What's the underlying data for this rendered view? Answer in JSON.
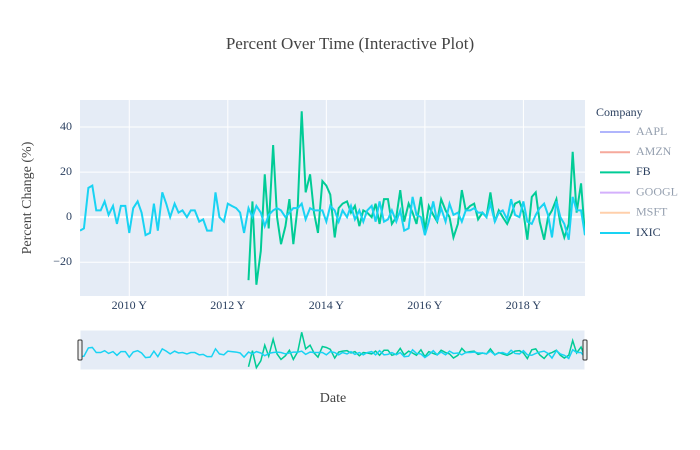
{
  "chart_data": {
    "type": "line",
    "title": "Percent Over Time (Interactive Plot)",
    "x_label": "Date",
    "y_label": "Percent Change (%)",
    "legend_title": "Company",
    "x": [
      2009,
      2009.08,
      2009.17,
      2009.25,
      2009.33,
      2009.42,
      2009.5,
      2009.58,
      2009.67,
      2009.75,
      2009.83,
      2009.92,
      2010,
      2010.08,
      2010.17,
      2010.25,
      2010.33,
      2010.42,
      2010.5,
      2010.58,
      2010.67,
      2010.75,
      2010.83,
      2010.92,
      2011,
      2011.08,
      2011.17,
      2011.25,
      2011.33,
      2011.42,
      2011.5,
      2011.58,
      2011.67,
      2011.75,
      2011.83,
      2011.92,
      2012,
      2012.08,
      2012.17,
      2012.25,
      2012.33,
      2012.42,
      2012.5,
      2012.58,
      2012.67,
      2012.75,
      2012.83,
      2012.92,
      2013,
      2013.08,
      2013.17,
      2013.25,
      2013.33,
      2013.42,
      2013.5,
      2013.58,
      2013.67,
      2013.75,
      2013.83,
      2013.92,
      2014,
      2014.08,
      2014.17,
      2014.25,
      2014.33,
      2014.42,
      2014.5,
      2014.58,
      2014.67,
      2014.75,
      2014.83,
      2014.92,
      2015,
      2015.08,
      2015.17,
      2015.25,
      2015.33,
      2015.42,
      2015.5,
      2015.58,
      2015.67,
      2015.75,
      2015.83,
      2015.92,
      2016,
      2016.08,
      2016.17,
      2016.25,
      2016.33,
      2016.42,
      2016.5,
      2016.58,
      2016.67,
      2016.75,
      2016.83,
      2016.92,
      2017,
      2017.08,
      2017.17,
      2017.25,
      2017.33,
      2017.42,
      2017.5,
      2017.58,
      2017.67,
      2017.75,
      2017.83,
      2017.92,
      2018,
      2018.08,
      2018.17,
      2018.25,
      2018.33,
      2018.42,
      2018.5,
      2018.58,
      2018.67,
      2018.75,
      2018.83,
      2018.92,
      2019,
      2019.08,
      2019.17,
      2019.25
    ],
    "series": [
      {
        "name": "AAPL",
        "color": "#636efa",
        "visible": "legendonly"
      },
      {
        "name": "AMZN",
        "color": "#EF553B",
        "visible": "legendonly"
      },
      {
        "name": "FB",
        "color": "#00cc96",
        "visible": true,
        "values": [
          null,
          null,
          null,
          null,
          null,
          null,
          null,
          null,
          null,
          null,
          null,
          null,
          null,
          null,
          null,
          null,
          null,
          null,
          null,
          null,
          null,
          null,
          null,
          null,
          null,
          null,
          null,
          null,
          null,
          null,
          null,
          null,
          null,
          null,
          null,
          null,
          null,
          null,
          null,
          null,
          null,
          -28,
          7,
          -30,
          -15,
          19,
          -5,
          32,
          0,
          -12,
          -4,
          8,
          -12,
          5,
          47,
          11,
          19,
          2,
          -7,
          16,
          14,
          10,
          -9,
          4,
          6,
          7,
          2,
          5,
          -4,
          3,
          2,
          0,
          6,
          -3,
          8,
          8,
          -3,
          0,
          12,
          -2,
          6,
          2,
          -3,
          9,
          -6,
          5,
          1,
          -2,
          8,
          3,
          0,
          -9,
          -3,
          12,
          3,
          5,
          6,
          -1,
          2,
          0,
          11,
          -2,
          3,
          0,
          -3,
          1,
          6,
          7,
          2,
          -10,
          9,
          11,
          -2,
          -10,
          0,
          3,
          8,
          -3,
          -9,
          -3,
          29,
          2,
          15,
          -8
        ]
      },
      {
        "name": "GOOGL",
        "color": "#ab63fa",
        "visible": "legendonly"
      },
      {
        "name": "MSFT",
        "color": "#FFA15A",
        "visible": "legendonly"
      },
      {
        "name": "IXIC",
        "color": "#19d3f3",
        "visible": true,
        "values": [
          -6,
          -5,
          13,
          14,
          3,
          3,
          7,
          1,
          5,
          -3,
          5,
          5,
          -7,
          4,
          7,
          2,
          -8,
          -7,
          6,
          -6,
          11,
          6,
          0,
          6,
          2,
          3,
          0,
          3,
          3,
          -2,
          -1,
          -6,
          -6,
          11,
          0,
          -2,
          6,
          5,
          4,
          2,
          -7,
          4,
          0,
          5,
          2,
          -4,
          1,
          3,
          4,
          3,
          0,
          2,
          4,
          4,
          6,
          -1,
          4,
          3,
          3,
          3,
          -2,
          5,
          3,
          -2,
          3,
          0,
          5,
          -1,
          3,
          -2,
          3,
          5,
          -2,
          7,
          -2,
          -1,
          3,
          -2,
          3,
          -6,
          -5,
          9,
          1,
          0,
          -8,
          -2,
          7,
          -2,
          4,
          -2,
          6,
          1,
          2,
          -2,
          3,
          3,
          4,
          2,
          2,
          0,
          6,
          -2,
          2,
          3,
          -1,
          8,
          1,
          0,
          7,
          -2,
          -3,
          1,
          4,
          6,
          1,
          -9,
          7,
          0,
          -3,
          -10,
          9,
          3,
          3,
          -8
        ]
      }
    ],
    "xlim": [
      2009,
      2019.25
    ],
    "xticks": [
      {
        "value": 2010,
        "label": "2010 Y"
      },
      {
        "value": 2012,
        "label": "2012 Y"
      },
      {
        "value": 2014,
        "label": "2014 Y"
      },
      {
        "value": 2016,
        "label": "2016 Y"
      },
      {
        "value": 2018,
        "label": "2018 Y"
      }
    ],
    "ylim": [
      -35,
      52
    ],
    "yticks": [
      {
        "value": -20,
        "label": "−20"
      },
      0,
      20,
      40
    ],
    "grid": true,
    "range_slider": true
  }
}
